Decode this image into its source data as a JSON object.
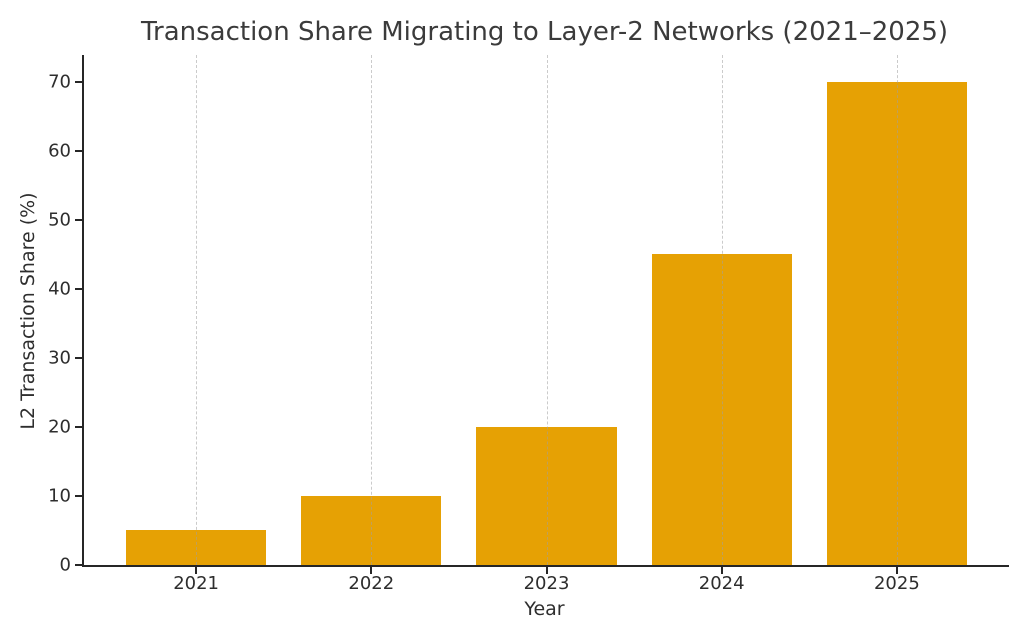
{
  "chart_data": {
    "type": "bar",
    "title": "Transaction Share Migrating to Layer-2 Networks (2021–2025)",
    "xlabel": "Year",
    "ylabel": "L2 Transaction Share (%)",
    "categories": [
      "2021",
      "2022",
      "2023",
      "2024",
      "2025"
    ],
    "values": [
      5,
      10,
      20,
      45,
      70
    ],
    "yticks": [
      0,
      10,
      20,
      30,
      40,
      50,
      60,
      70
    ],
    "ylim": [
      0,
      73.86
    ],
    "bar_width_fraction": 0.8,
    "grid": "vertical-dashed",
    "legend": "none",
    "colors": {
      "bar": "#E6A104",
      "gridline": "#C8C8C8",
      "axis": "#262626",
      "text": "#2E2E2E",
      "title_text": "#3B3B3B",
      "background": "#FFFFFF"
    }
  }
}
